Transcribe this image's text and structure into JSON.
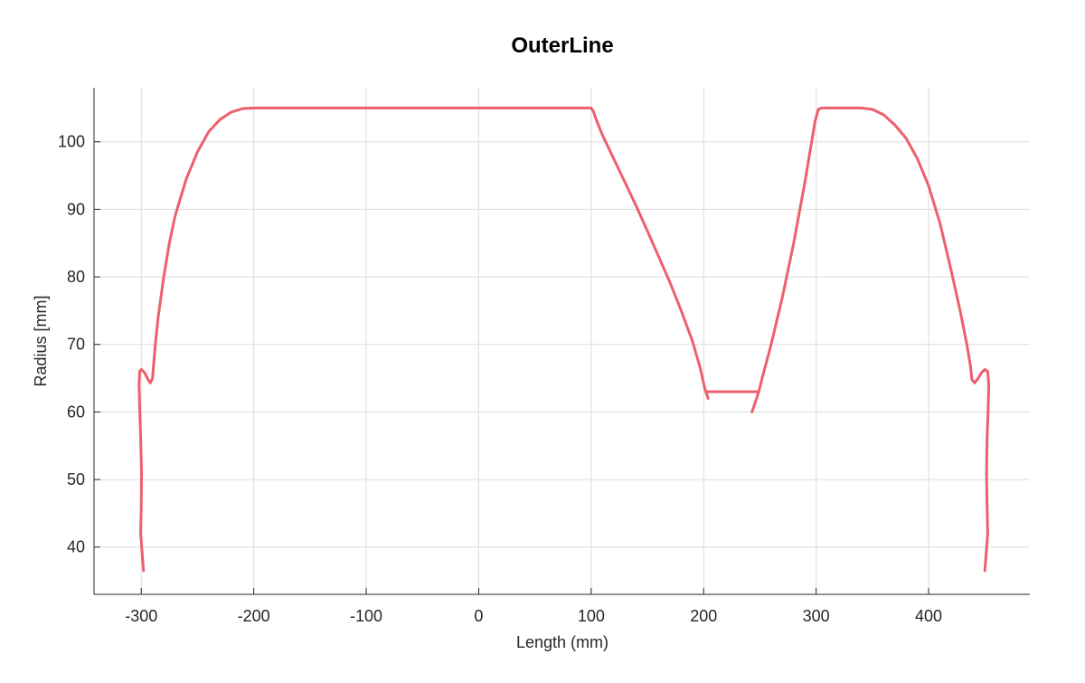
{
  "chart_data": {
    "type": "line",
    "title": "OuterLine",
    "xlabel": "Length (mm)",
    "ylabel": "Radius [mm]",
    "xlim": [
      -342,
      490
    ],
    "ylim": [
      33,
      108
    ],
    "x_ticks": [
      -300,
      -200,
      -100,
      0,
      100,
      200,
      300,
      400
    ],
    "x_tick_labels": [
      "-300",
      "-200",
      "-100",
      "0",
      "100",
      "200",
      "300",
      "400"
    ],
    "y_ticks": [
      40,
      50,
      60,
      70,
      80,
      90,
      100
    ],
    "y_tick_labels": [
      "40",
      "50",
      "60",
      "70",
      "80",
      "90",
      "100"
    ],
    "grid": true,
    "line_color": "#ee5f6c",
    "series": [
      {
        "points": [
          [
            -298,
            36.5
          ],
          [
            -300.5,
            42
          ],
          [
            -300,
            46
          ],
          [
            -299.8,
            51
          ],
          [
            -300.5,
            56
          ],
          [
            -301.5,
            61
          ],
          [
            -302,
            64
          ],
          [
            -301.5,
            66
          ],
          [
            -300,
            66.3
          ],
          [
            -297,
            65.8
          ],
          [
            -294,
            64.8
          ],
          [
            -292,
            64.3
          ],
          [
            -290,
            65
          ],
          [
            -289,
            67
          ],
          [
            -287.5,
            70
          ],
          [
            -285,
            74
          ],
          [
            -280,
            80
          ],
          [
            -275,
            85
          ],
          [
            -270,
            89
          ],
          [
            -260,
            94.5
          ],
          [
            -250,
            98.5
          ],
          [
            -240,
            101.5
          ],
          [
            -230,
            103.3
          ],
          [
            -220,
            104.4
          ],
          [
            -210,
            104.9
          ],
          [
            -200,
            105
          ],
          [
            -100,
            105
          ],
          [
            0,
            105
          ],
          [
            100,
            105
          ],
          [
            102,
            104.5
          ],
          [
            104,
            103.5
          ],
          [
            110,
            101
          ],
          [
            120,
            97.5
          ],
          [
            130,
            94
          ],
          [
            140,
            90.5
          ],
          [
            150,
            86.8
          ],
          [
            160,
            83
          ],
          [
            170,
            79.2
          ],
          [
            180,
            75
          ],
          [
            190,
            70.5
          ],
          [
            197,
            66.5
          ],
          [
            201,
            63.5
          ],
          [
            204,
            62
          ]
        ]
      },
      {
        "points": [
          [
            203,
            63
          ],
          [
            249,
            63
          ]
        ]
      },
      {
        "points": [
          [
            243,
            60
          ],
          [
            246,
            61.5
          ],
          [
            249,
            63
          ],
          [
            252,
            65
          ],
          [
            260,
            70
          ],
          [
            270,
            77
          ],
          [
            280,
            85
          ],
          [
            290,
            94
          ],
          [
            297,
            101
          ],
          [
            299,
            103
          ],
          [
            302,
            104.8
          ],
          [
            305,
            105
          ],
          [
            340,
            105
          ],
          [
            350,
            104.8
          ],
          [
            360,
            104
          ],
          [
            370,
            102.5
          ],
          [
            380,
            100.5
          ],
          [
            390,
            97.5
          ],
          [
            400,
            93.5
          ],
          [
            410,
            88
          ],
          [
            420,
            81
          ],
          [
            428,
            75
          ],
          [
            434,
            70
          ],
          [
            437,
            67
          ],
          [
            438.5,
            64.8
          ],
          [
            441,
            64.3
          ],
          [
            444,
            65
          ],
          [
            447,
            65.8
          ],
          [
            450,
            66.3
          ],
          [
            452.5,
            66
          ],
          [
            453.5,
            64
          ],
          [
            453,
            61
          ],
          [
            452,
            56
          ],
          [
            451.5,
            51
          ],
          [
            452,
            46
          ],
          [
            452.5,
            42
          ],
          [
            450,
            36.5
          ]
        ]
      }
    ]
  }
}
